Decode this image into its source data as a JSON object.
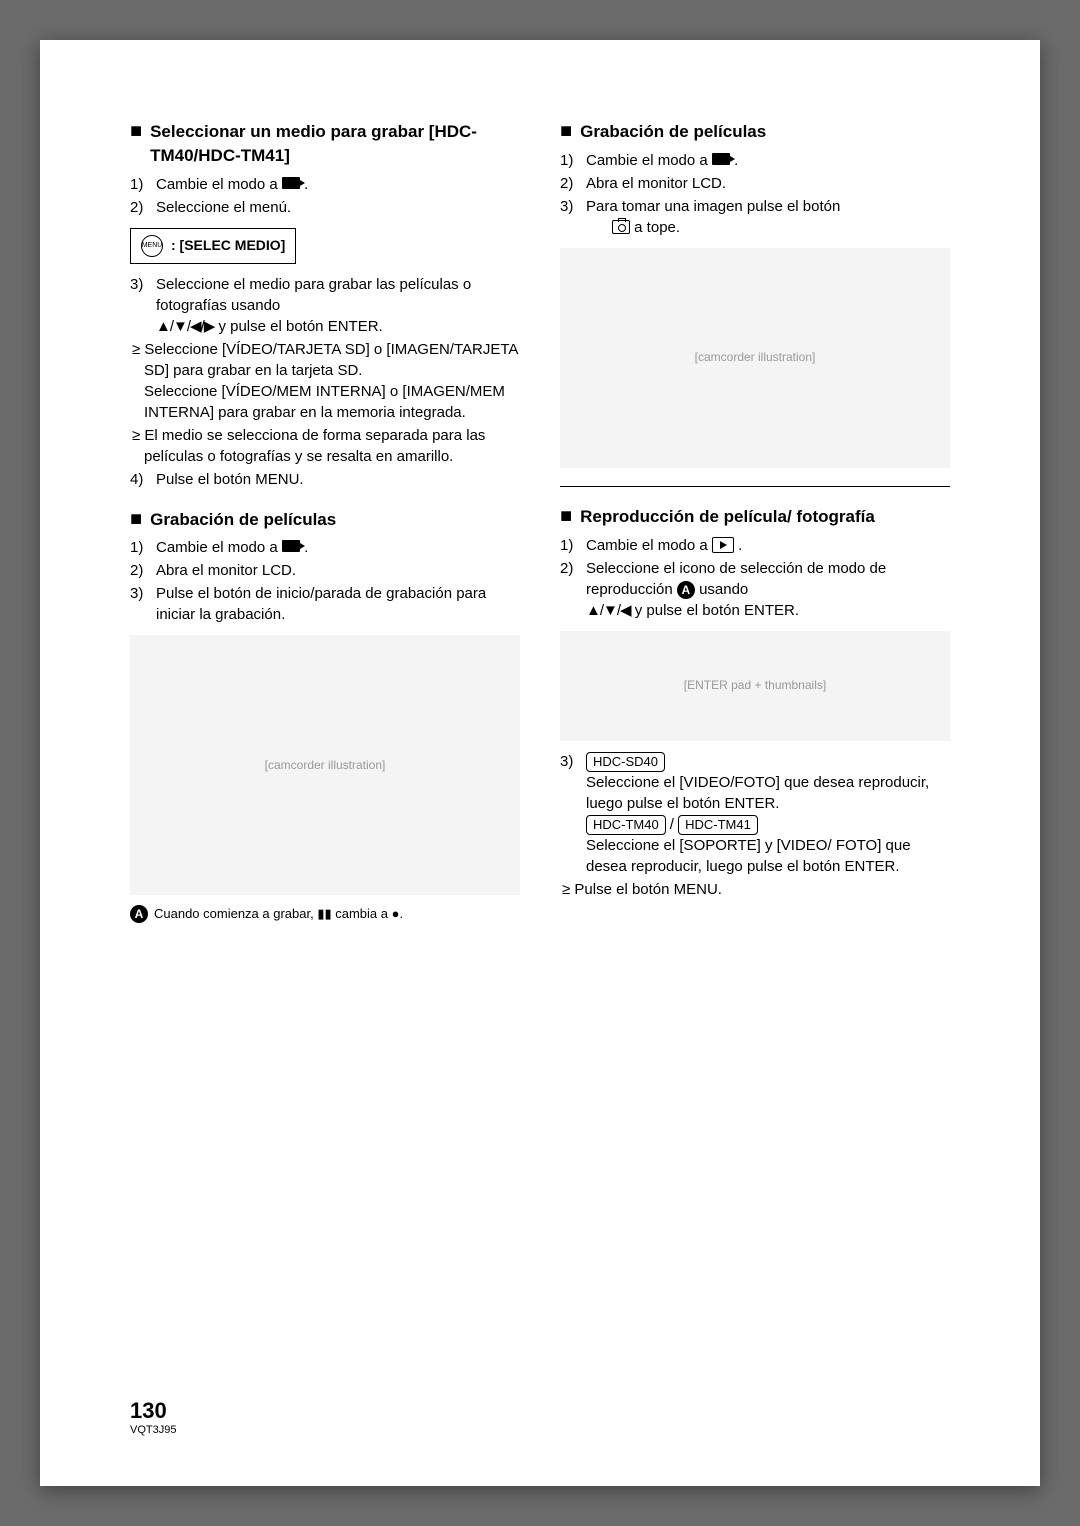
{
  "left": {
    "h1": "Seleccionar un medio para grabar [HDC-TM40/HDC-TM41]",
    "s1_1": "Cambie el modo a",
    "s1_2": "Seleccione el menú.",
    "menu_label": ": [SELEC MEDIO]",
    "menu_icon_text": "MENU",
    "s1_3a": "Seleccione el medio para grabar las películas o fotografías usando",
    "s1_3b": " y pulse el botón ENTER.",
    "arrows1": "▲/▼/◀/▶",
    "b1": "Seleccione [VÍDEO/TARJETA SD] o [IMAGEN/TARJETA SD] para grabar en la tarjeta SD.",
    "b1b": "Seleccione [VÍDEO/MEM INTERNA] o [IMAGEN/MEM INTERNA] para grabar en la memoria integrada.",
    "b2": "El medio se selecciona de forma separada para las películas o fotografías y se resalta en amarillo.",
    "s1_4": "Pulse el botón MENU.",
    "h2": "Grabación de películas",
    "s2_1": "Cambie el modo a",
    "s2_2": "Abra el monitor LCD.",
    "s2_3": "Pulse el botón de inicio/parada de grabación para iniciar la grabación.",
    "cap_a": "Cuando comienza a grabar, ▮▮ cambia a ●."
  },
  "right": {
    "h1": "Grabación de películas",
    "s1_1": "Cambie el modo a",
    "s1_2": "Abra el monitor LCD.",
    "s1_3a": "Para tomar una imagen pulse el botón",
    "s1_3b": " a tope.",
    "h2": "Reproducción de película/ fotografía",
    "s2_1": "Cambie el modo a",
    "s2_2a": "Seleccione el icono de selección de modo de reproducción ",
    "s2_2b": " usando",
    "s2_2c": " y pulse el botón ENTER.",
    "arrows2": "▲/▼/◀",
    "model1": "HDC-SD40",
    "s3_a": "Seleccione el [VIDEO/FOTO] que desea reproducir, luego pulse el botón ENTER.",
    "model2": "HDC-TM40",
    "model3": "HDC-TM41",
    "s3_b": "Seleccione el [SOPORTE] y [VIDEO/ FOTO] que desea reproducir, luego pulse el botón ENTER.",
    "b_last": "Pulse el botón MENU."
  },
  "footer": {
    "page": "130",
    "code": "VQT3J95"
  },
  "fig": {
    "f1": "[camcorder illustration]",
    "f2": "[camcorder illustration]",
    "f3": "[ENTER pad + thumbnails]"
  }
}
